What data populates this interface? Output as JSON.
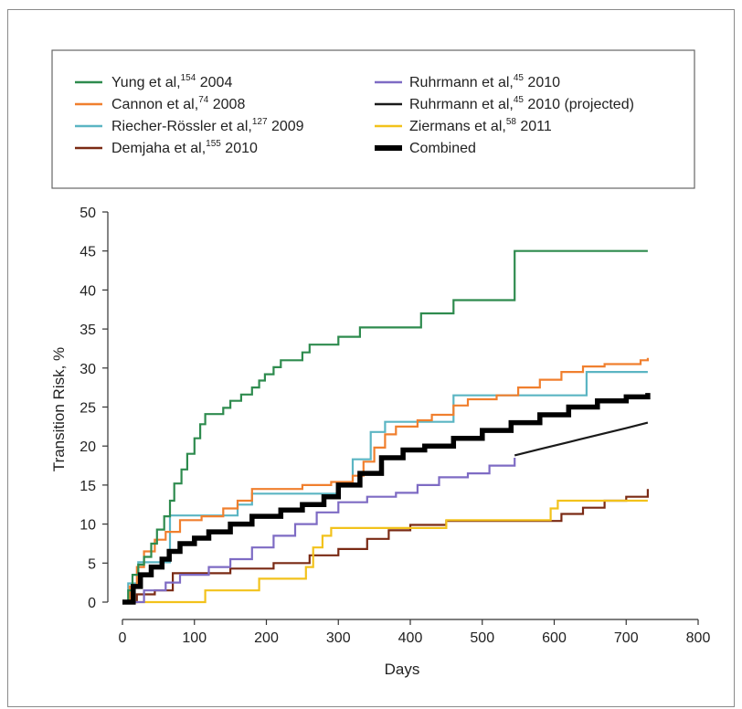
{
  "chart_data": {
    "type": "line",
    "xlabel": "Days",
    "ylabel": "Transition Risk, %",
    "xlim": [
      0,
      800
    ],
    "ylim": [
      0,
      50
    ],
    "xticks": [
      "0",
      "100",
      "200",
      "300",
      "400",
      "500",
      "600",
      "700",
      "800"
    ],
    "yticks": [
      "0",
      "5",
      "10",
      "15",
      "20",
      "25",
      "30",
      "35",
      "40",
      "45",
      "50"
    ],
    "grid": false,
    "legend_position": "top",
    "series": [
      {
        "name": "Yung et al,154 2004",
        "legend": {
          "text": "Yung et al,",
          "sup": "154",
          "suffix": " 2004"
        },
        "color": "#2e8b4e",
        "style": "step",
        "points": [
          [
            0,
            0
          ],
          [
            8,
            1.5
          ],
          [
            14,
            3.5
          ],
          [
            22,
            4.8
          ],
          [
            30,
            5.8
          ],
          [
            40,
            7.5
          ],
          [
            48,
            9.3
          ],
          [
            58,
            11
          ],
          [
            66,
            13
          ],
          [
            72,
            15.2
          ],
          [
            82,
            17
          ],
          [
            90,
            19
          ],
          [
            100,
            21
          ],
          [
            108,
            22.8
          ],
          [
            115,
            24.1
          ],
          [
            140,
            24.9
          ],
          [
            150,
            25.8
          ],
          [
            165,
            26.6
          ],
          [
            180,
            27.5
          ],
          [
            190,
            28.4
          ],
          [
            198,
            29.2
          ],
          [
            210,
            30.1
          ],
          [
            220,
            31
          ],
          [
            250,
            32
          ],
          [
            260,
            33
          ],
          [
            300,
            34
          ],
          [
            330,
            35.2
          ],
          [
            415,
            37
          ],
          [
            460,
            38.7
          ],
          [
            545,
            45
          ],
          [
            730,
            45
          ]
        ]
      },
      {
        "name": "Cannon et al,74 2008",
        "legend": {
          "text": "Cannon et al,",
          "sup": "74",
          "suffix": " 2008"
        },
        "color": "#f07f2e",
        "style": "step",
        "points": [
          [
            0,
            0
          ],
          [
            10,
            2
          ],
          [
            20,
            4.5
          ],
          [
            30,
            6.5
          ],
          [
            45,
            8
          ],
          [
            60,
            9
          ],
          [
            80,
            10.5
          ],
          [
            110,
            11
          ],
          [
            140,
            12
          ],
          [
            160,
            13
          ],
          [
            180,
            14.5
          ],
          [
            250,
            15
          ],
          [
            290,
            15.4
          ],
          [
            320,
            16.2
          ],
          [
            335,
            18
          ],
          [
            350,
            19.8
          ],
          [
            365,
            21.5
          ],
          [
            380,
            22.5
          ],
          [
            410,
            23.3
          ],
          [
            430,
            24
          ],
          [
            460,
            25.2
          ],
          [
            480,
            26
          ],
          [
            520,
            26.5
          ],
          [
            550,
            27.5
          ],
          [
            580,
            28.5
          ],
          [
            610,
            29.5
          ],
          [
            640,
            30.2
          ],
          [
            670,
            30.5
          ],
          [
            720,
            31
          ],
          [
            730,
            31.3
          ]
        ]
      },
      {
        "name": "Riecher-Rössler et al,127 2009",
        "legend": {
          "text": "Riecher-Rössler et al,",
          "sup": "127",
          "suffix": " 2009"
        },
        "color": "#5bb5c3",
        "style": "step",
        "points": [
          [
            0,
            0
          ],
          [
            8,
            2.4
          ],
          [
            22,
            5.1
          ],
          [
            66,
            11.1
          ],
          [
            118,
            11.1
          ],
          [
            160,
            12.5
          ],
          [
            180,
            13.9
          ],
          [
            300,
            15.3
          ],
          [
            320,
            18.3
          ],
          [
            345,
            21.8
          ],
          [
            365,
            23.1
          ],
          [
            460,
            26.5
          ],
          [
            540,
            26.5
          ],
          [
            645,
            29.5
          ],
          [
            730,
            29.5
          ]
        ]
      },
      {
        "name": "Demjaha et al,155 2010",
        "legend": {
          "text": "Demjaha et al,",
          "sup": "155",
          "suffix": " 2010"
        },
        "color": "#7a2a14",
        "style": "step",
        "points": [
          [
            0,
            0
          ],
          [
            20,
            1
          ],
          [
            45,
            1.5
          ],
          [
            70,
            3.7
          ],
          [
            150,
            4.3
          ],
          [
            210,
            5
          ],
          [
            260,
            6
          ],
          [
            300,
            6.8
          ],
          [
            340,
            8.1
          ],
          [
            370,
            9.2
          ],
          [
            400,
            9.9
          ],
          [
            450,
            10.4
          ],
          [
            600,
            10.4
          ],
          [
            610,
            11.3
          ],
          [
            640,
            12.1
          ],
          [
            670,
            13
          ],
          [
            700,
            13.5
          ],
          [
            730,
            14.5
          ]
        ]
      },
      {
        "name": "Ruhrmann et al,45 2010",
        "legend": {
          "text": "Ruhrmann et al,",
          "sup": "45",
          "suffix": " 2010"
        },
        "color": "#7e6bc4",
        "style": "step",
        "points": [
          [
            0,
            0
          ],
          [
            30,
            1.5
          ],
          [
            60,
            2.5
          ],
          [
            80,
            3.5
          ],
          [
            120,
            4.5
          ],
          [
            150,
            5.5
          ],
          [
            180,
            7
          ],
          [
            210,
            8.5
          ],
          [
            240,
            10
          ],
          [
            270,
            11.5
          ],
          [
            300,
            12.8
          ],
          [
            340,
            13.5
          ],
          [
            380,
            14
          ],
          [
            410,
            15
          ],
          [
            440,
            16
          ],
          [
            480,
            16.5
          ],
          [
            510,
            17.5
          ],
          [
            545,
            18.5
          ]
        ]
      },
      {
        "name": "Ruhrmann et al,45 2010 (projected)",
        "legend": {
          "text": "Ruhrmann et al,",
          "sup": "45",
          "suffix": " 2010 (projected)"
        },
        "color": "#1a1a1a",
        "style": "curve",
        "points": [
          [
            545,
            18.8
          ],
          [
            580,
            19.6
          ],
          [
            620,
            20.5
          ],
          [
            660,
            21.4
          ],
          [
            700,
            22.3
          ],
          [
            730,
            23
          ]
        ]
      },
      {
        "name": "Ziermans et al,58 2011",
        "legend": {
          "text": "Ziermans et al,",
          "sup": "58",
          "suffix": " 2011"
        },
        "color": "#f2c21b",
        "style": "step",
        "points": [
          [
            0,
            0
          ],
          [
            115,
            1.5
          ],
          [
            190,
            3
          ],
          [
            255,
            4.5
          ],
          [
            265,
            7
          ],
          [
            278,
            8.5
          ],
          [
            290,
            9.5
          ],
          [
            450,
            10.5
          ],
          [
            595,
            12
          ],
          [
            605,
            13
          ],
          [
            730,
            13
          ]
        ]
      },
      {
        "name": "Combined",
        "legend": {
          "text": "Combined",
          "sup": "",
          "suffix": ""
        },
        "color": "#000000",
        "style": "stepthick",
        "points": [
          [
            0,
            0
          ],
          [
            15,
            2
          ],
          [
            25,
            3.5
          ],
          [
            40,
            4.5
          ],
          [
            55,
            5.5
          ],
          [
            65,
            6.5
          ],
          [
            80,
            7.5
          ],
          [
            100,
            8.2
          ],
          [
            120,
            9
          ],
          [
            150,
            10
          ],
          [
            180,
            11
          ],
          [
            220,
            11.8
          ],
          [
            250,
            12.5
          ],
          [
            280,
            13.5
          ],
          [
            300,
            15
          ],
          [
            330,
            16.5
          ],
          [
            360,
            18.5
          ],
          [
            390,
            19.5
          ],
          [
            420,
            20
          ],
          [
            460,
            21
          ],
          [
            500,
            22
          ],
          [
            540,
            23
          ],
          [
            580,
            24
          ],
          [
            620,
            25
          ],
          [
            660,
            25.8
          ],
          [
            700,
            26.3
          ],
          [
            730,
            26.8
          ]
        ]
      }
    ]
  }
}
